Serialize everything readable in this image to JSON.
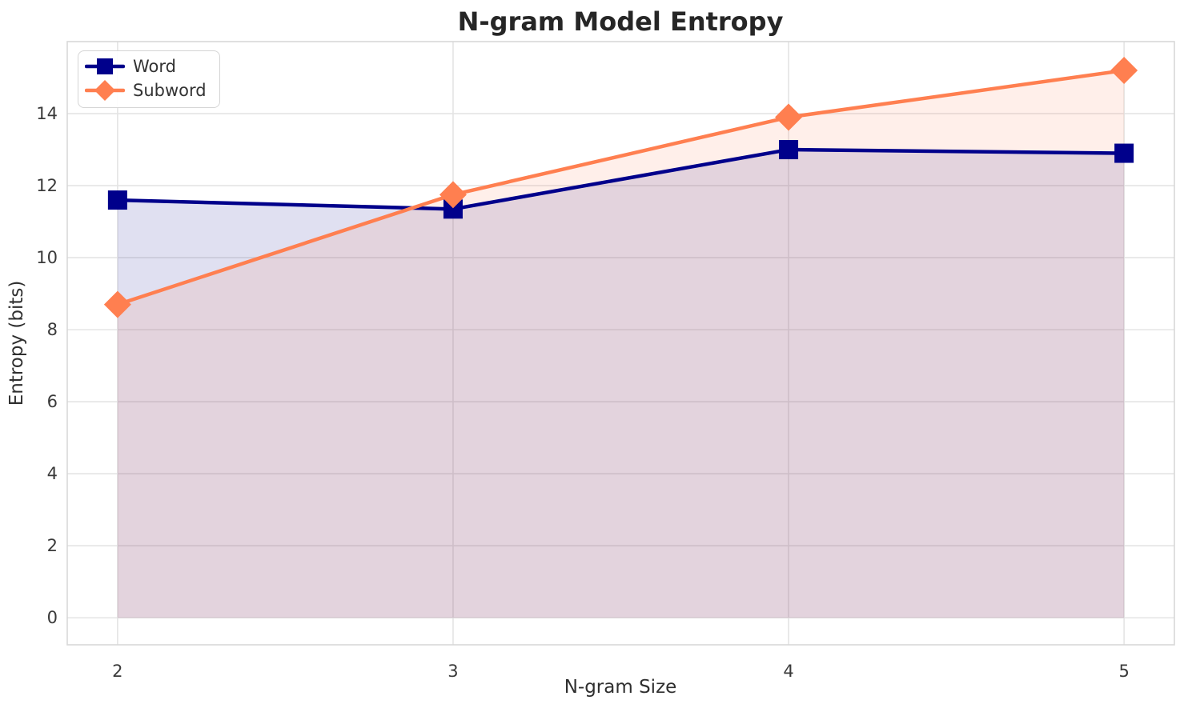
{
  "chart_data": {
    "type": "line",
    "title": "N-gram Model Entropy",
    "xlabel": "N-gram Size",
    "ylabel": "Entropy (bits)",
    "x": [
      2,
      3,
      4,
      5
    ],
    "series": [
      {
        "name": "Word",
        "values": [
          11.6,
          11.35,
          13.0,
          12.9
        ],
        "color": "#00008B",
        "marker": "square"
      },
      {
        "name": "Subword",
        "values": [
          8.7,
          11.75,
          13.9,
          15.2
        ],
        "color": "#FF7F50",
        "marker": "diamond"
      }
    ],
    "xlim": [
      1.85,
      5.15
    ],
    "ylim": [
      -0.75,
      16.0
    ],
    "xticks": [
      2,
      3,
      4,
      5
    ],
    "yticks": [
      0,
      2,
      4,
      6,
      8,
      10,
      12,
      14
    ],
    "grid": true,
    "grid_color": "#e4e4e4",
    "spine_color": "#d8d8d8",
    "fill_opacity": 0.12,
    "fill_to_zero": true,
    "legend_position": "upper-left",
    "line_width": 4.5
  }
}
